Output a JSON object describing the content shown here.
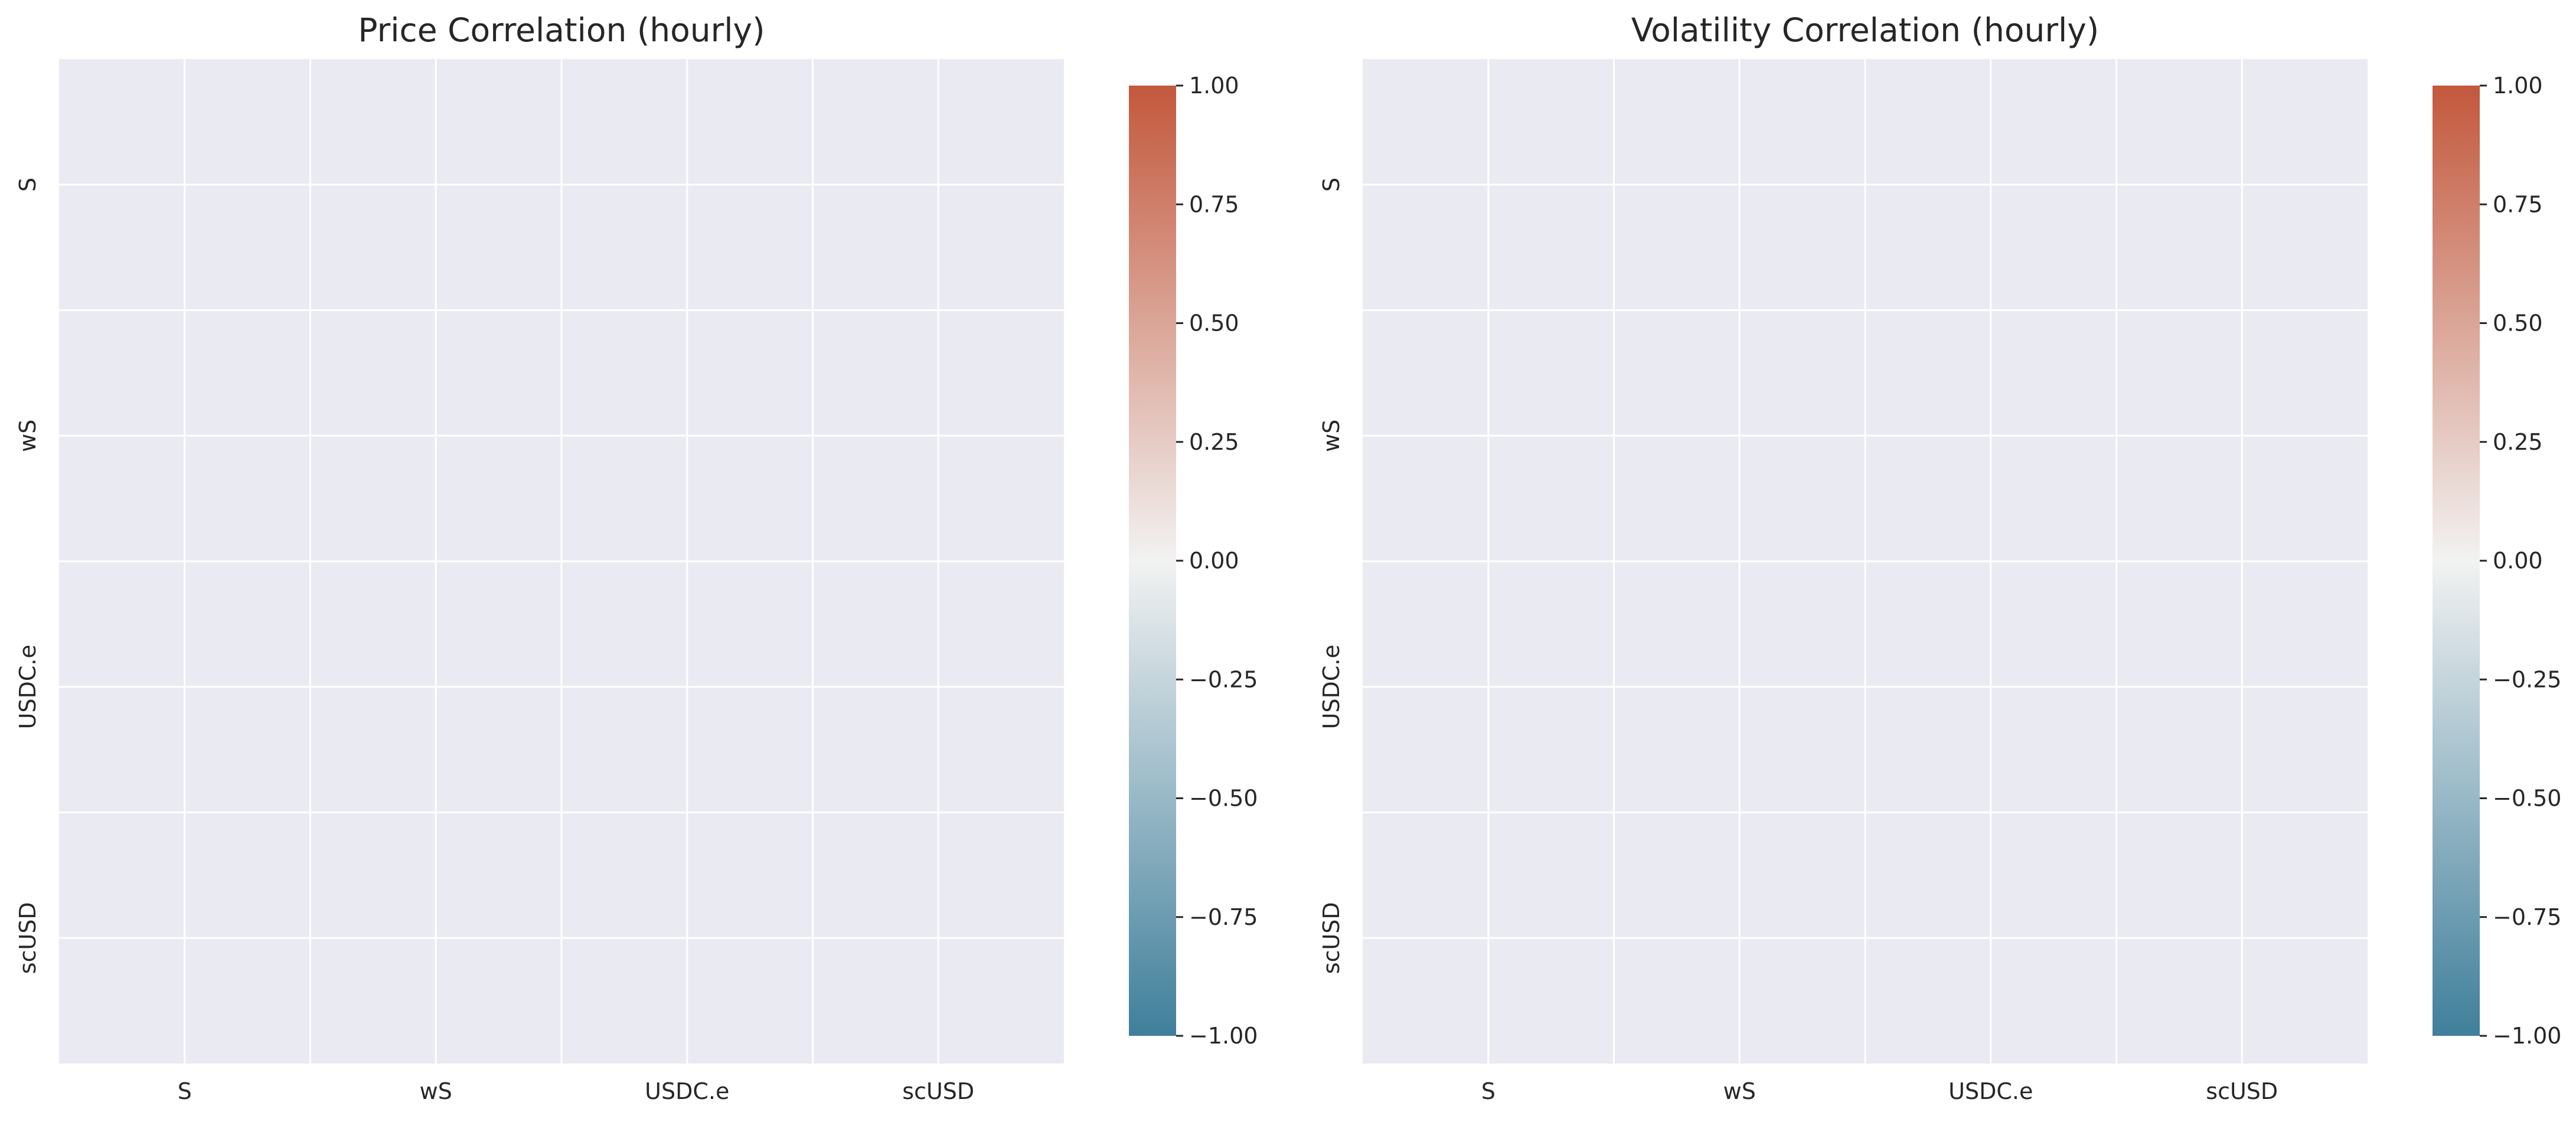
{
  "chart_data": [
    {
      "type": "heatmap",
      "title": "Price Correlation (hourly)",
      "x_labels": [
        "S",
        "wS",
        "USDC.e",
        "scUSD"
      ],
      "y_labels": [
        "S",
        "wS",
        "USDC.e",
        "scUSD"
      ],
      "values": [
        [
          null,
          null,
          null,
          null
        ],
        [
          null,
          null,
          null,
          null
        ],
        [
          null,
          null,
          null,
          null
        ],
        [
          null,
          null,
          null,
          null
        ]
      ],
      "colorbar": {
        "range": [
          -1.0,
          1.0
        ],
        "ticks": [
          "1.00",
          "0.75",
          "0.50",
          "0.25",
          "0.00",
          "−0.25",
          "−0.50",
          "−0.75",
          "−1.00"
        ],
        "tick_values": [
          1.0,
          0.75,
          0.5,
          0.25,
          0.0,
          -0.25,
          -0.5,
          -0.75,
          -1.0
        ],
        "colors": [
          "#3f7f9b",
          "#f2f2f2",
          "#c3583c"
        ]
      },
      "grid": true
    },
    {
      "type": "heatmap",
      "title": "Volatility Correlation (hourly)",
      "x_labels": [
        "S",
        "wS",
        "USDC.e",
        "scUSD"
      ],
      "y_labels": [
        "S",
        "wS",
        "USDC.e",
        "scUSD"
      ],
      "values": [
        [
          null,
          null,
          null,
          null
        ],
        [
          null,
          null,
          null,
          null
        ],
        [
          null,
          null,
          null,
          null
        ],
        [
          null,
          null,
          null,
          null
        ]
      ],
      "colorbar": {
        "range": [
          -1.0,
          1.0
        ],
        "ticks": [
          "1.00",
          "0.75",
          "0.50",
          "0.25",
          "0.00",
          "−0.25",
          "−0.50",
          "−0.75",
          "−1.00"
        ],
        "tick_values": [
          1.0,
          0.75,
          0.5,
          0.25,
          0.0,
          -0.25,
          -0.5,
          -0.75,
          -1.0
        ],
        "colors": [
          "#3f7f9b",
          "#f2f2f2",
          "#c3583c"
        ]
      },
      "grid": true
    }
  ]
}
